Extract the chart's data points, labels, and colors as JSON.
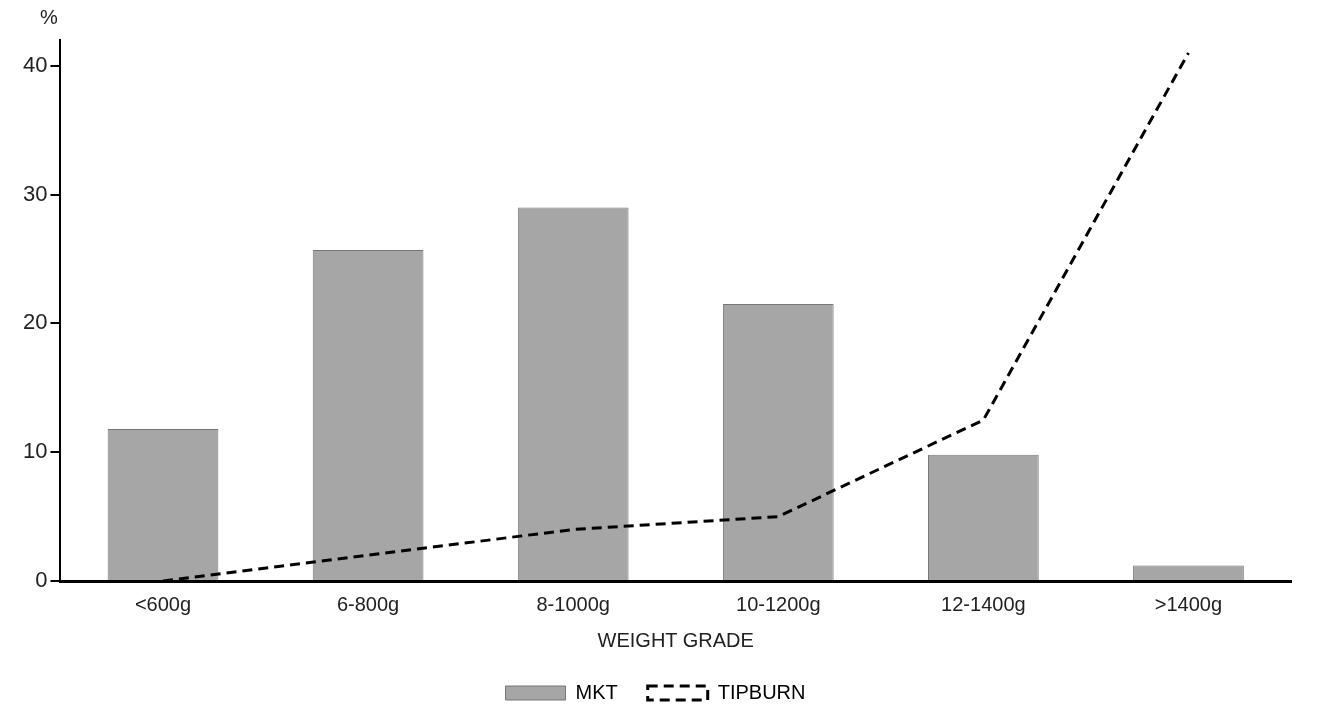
{
  "chart_data": {
    "type": "bar",
    "xlabel": "WEIGHT GRADE",
    "ylabel": "%",
    "categories": [
      "<600g",
      "6-800g",
      "8-1000g",
      "10-1200g",
      "12-1400g",
      ">1400g"
    ],
    "series": [
      {
        "name": "MKT",
        "color": "#a6a6a6",
        "values": [
          11.8,
          25.7,
          29,
          21.5,
          9.8,
          1.2
        ]
      },
      {
        "name": "TIPBURN",
        "type": "line",
        "color": "#000000",
        "line_style": "dashed",
        "marker": "none",
        "values": [
          0,
          2,
          4,
          5,
          12.5,
          41
        ]
      }
    ],
    "ylim": [
      0,
      42
    ],
    "yticks": [
      0,
      10,
      20,
      30,
      40
    ],
    "grid": false,
    "legend": "bottom"
  }
}
